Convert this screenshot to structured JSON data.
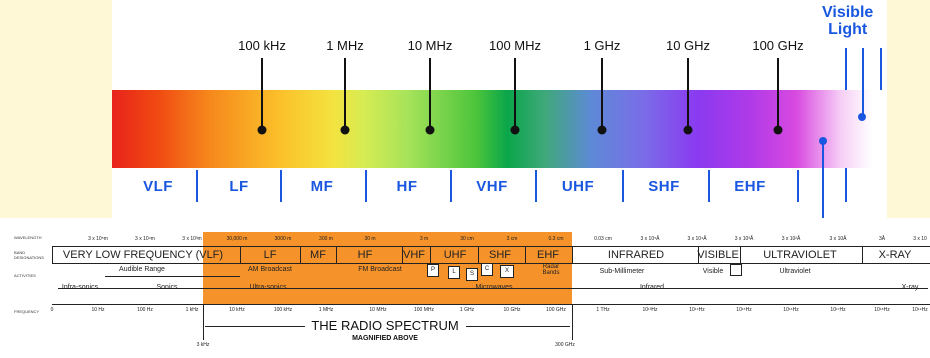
{
  "top": {
    "frequencies": [
      "100 kHz",
      "1 MHz",
      "10 MHz",
      "100 MHz",
      "1 GHz",
      "10 GHz",
      "100 GHz"
    ],
    "bands": [
      "VLF",
      "LF",
      "MF",
      "HF",
      "VHF",
      "UHF",
      "SHF",
      "EHF"
    ],
    "visible_light": "Visible Light",
    "visible_line1": "Visible",
    "visible_line2": "Light"
  },
  "bottom": {
    "row_labels": {
      "wavelength": "WAVELENGTH",
      "band": "BAND DESIGNATIONS",
      "activities": "ACTIVITIES",
      "frequency": "FREQUENCY"
    },
    "wavelengths": [
      "3 x 10⁵m",
      "3 x 10⁴m",
      "3 x 10³m",
      "30,000 m",
      "3000 m",
      "300 m",
      "30 m",
      "3 m",
      "30 cm",
      "3 cm",
      "0.3 cm",
      "0.03 cm",
      "3 x 10⁵Å",
      "3 x 10⁴Å",
      "3 x 10³Å",
      "3 x 10²Å",
      "3 x 10Å",
      "3Å",
      "3 x 10"
    ],
    "bands": [
      "VERY LOW FREQUENCY (VLF)",
      "LF",
      "MF",
      "HF",
      "VHF",
      "UHF",
      "SHF",
      "EHF",
      "INFRARED",
      "VISIBLE",
      "ULTRAVIOLET",
      "X-RAY"
    ],
    "activities": {
      "audible": "Audible Range",
      "am": "AM Broadcast",
      "fm": "FM Broadcast",
      "p": "P",
      "l": "L",
      "s": "S",
      "c": "C",
      "x": "X",
      "radar": "Radar Bands",
      "submm": "Sub-Millimeter",
      "visible": "Visible",
      "uv": "Ultraviolet",
      "infrasonics": "Infra-sonics",
      "sonics": "Sonics",
      "ultrasonics": "Ultra-sonics",
      "microwaves": "Microwaves",
      "infrared": "Infrared",
      "xray": "X-ray"
    },
    "frequencies": [
      "0",
      "10 Hz",
      "100 Hz",
      "1 kHz",
      "10 kHz",
      "100 kHz",
      "1 MHz",
      "10 MHz",
      "100 MHz",
      "1 GHz",
      "10 GHz",
      "100 GHz",
      "1 THz",
      "10¹³Hz",
      "10¹⁴Hz",
      "10¹⁵Hz",
      "10¹⁶Hz",
      "10¹⁷Hz",
      "10¹⁸Hz",
      "10¹⁹Hz"
    ],
    "title": "THE RADIO SPECTRUM",
    "subtitle": "MAGNIFIED ABOVE",
    "range_start": "3 kHz",
    "range_end": "300 GHz"
  },
  "colors": {
    "band_blue": "#1a57e0",
    "orange": "#f5922a"
  }
}
